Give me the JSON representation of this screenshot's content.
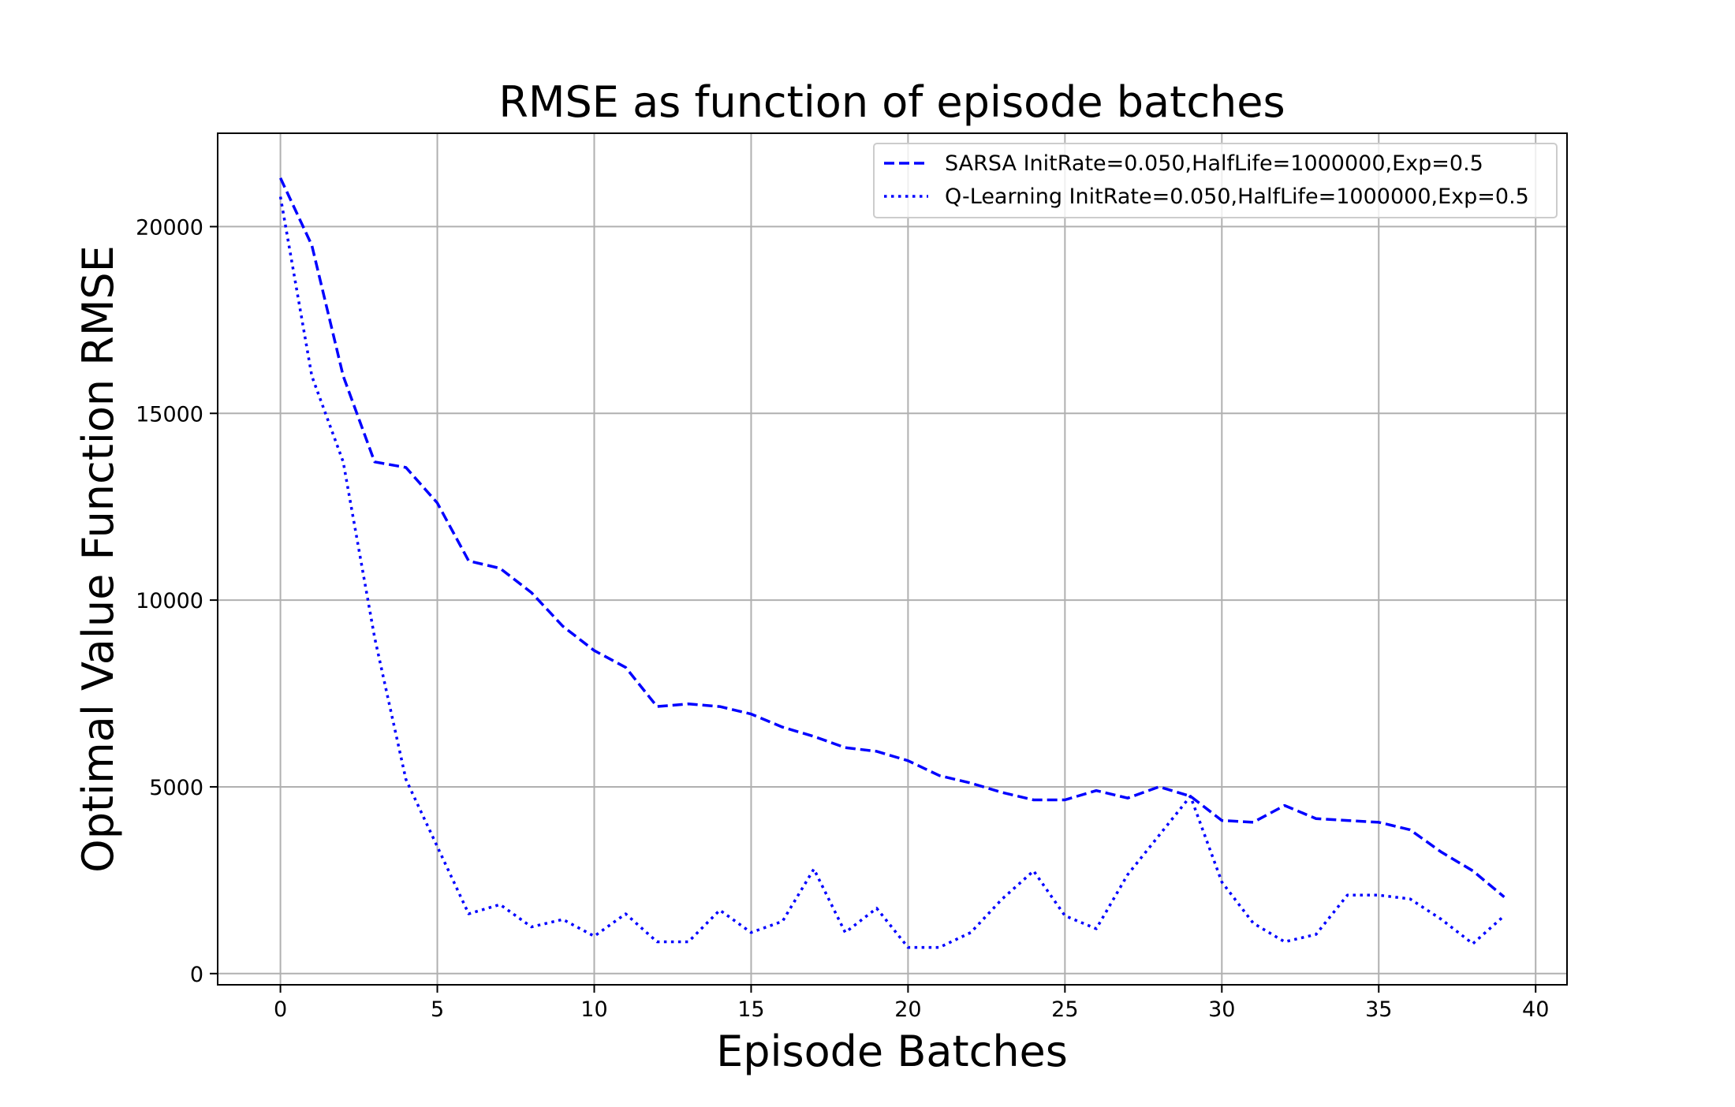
{
  "chart_data": {
    "type": "line",
    "title": "RMSE as function of episode batches",
    "xlabel": "Episode Batches",
    "ylabel": "Optimal Value Function RMSE",
    "xlim": [
      -2,
      41
    ],
    "ylim": [
      -300,
      22500
    ],
    "xticks": [
      0,
      5,
      10,
      15,
      20,
      25,
      30,
      35,
      40
    ],
    "yticks": [
      0,
      5000,
      10000,
      15000,
      20000
    ],
    "grid": true,
    "legend_position": "top-right",
    "x": [
      0,
      1,
      2,
      3,
      4,
      5,
      6,
      7,
      8,
      9,
      10,
      11,
      12,
      13,
      14,
      15,
      16,
      17,
      18,
      19,
      20,
      21,
      22,
      23,
      24,
      25,
      26,
      27,
      28,
      29,
      30,
      31,
      32,
      33,
      34,
      35,
      36,
      37,
      38,
      39
    ],
    "series": [
      {
        "name": "SARSA InitRate=0.050,HalfLife=1000000,Exp=0.5",
        "color": "#0000ff",
        "style": "dashed",
        "values": [
          21300,
          19500,
          16000,
          13700,
          13550,
          12600,
          11050,
          10850,
          10200,
          9300,
          8650,
          8200,
          7150,
          7220,
          7150,
          6950,
          6600,
          6350,
          6050,
          5950,
          5700,
          5300,
          5100,
          4850,
          4650,
          4650,
          4900,
          4700,
          5000,
          4750,
          4100,
          4050,
          4500,
          4150,
          4100,
          4050,
          3850,
          3250,
          2750,
          2050
        ]
      },
      {
        "name": "Q-Learning InitRate=0.050,HalfLife=1000000,Exp=0.5",
        "color": "#0000ff",
        "style": "dotted",
        "values": [
          20800,
          16000,
          13700,
          9000,
          5200,
          3400,
          1600,
          1850,
          1250,
          1450,
          1000,
          1600,
          850,
          850,
          1700,
          1100,
          1400,
          2800,
          1100,
          1750,
          700,
          700,
          1100,
          2000,
          2750,
          1550,
          1200,
          2650,
          3700,
          4750,
          2450,
          1350,
          850,
          1050,
          2100,
          2100,
          2000,
          1450,
          800,
          1550
        ]
      }
    ]
  }
}
